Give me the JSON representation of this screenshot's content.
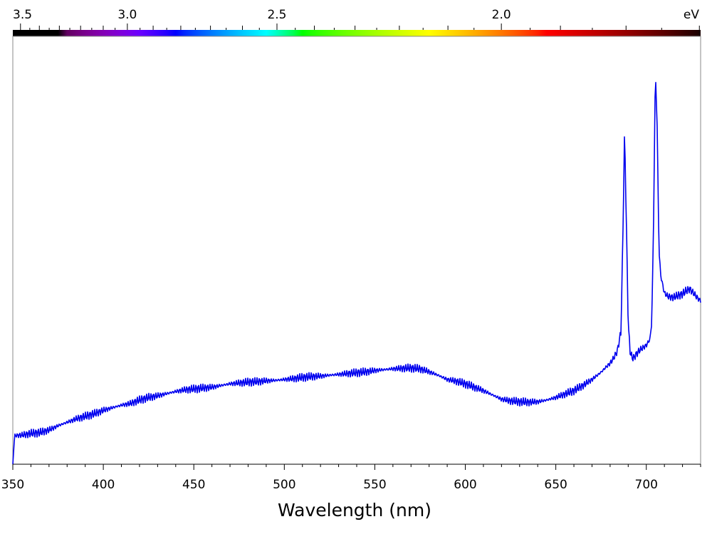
{
  "chart_data": {
    "type": "line",
    "xlabel": "Wavelength (nm)",
    "xlim": [
      350,
      730
    ],
    "ylim": [
      0,
      1
    ],
    "grid": false,
    "x_ticks": [
      350,
      400,
      450,
      500,
      550,
      600,
      650,
      700
    ],
    "top_axis": {
      "unit_label": "eV",
      "ticks": [
        {
          "label": "3.5",
          "value": 3.5
        },
        {
          "label": "3.0",
          "value": 3.0
        },
        {
          "label": "2.5",
          "value": 2.5
        },
        {
          "label": "2.0",
          "value": 2.0
        }
      ]
    },
    "colors": {
      "line": "#0000ee",
      "frame": "#888888",
      "axis": "#000000"
    },
    "series": [
      {
        "x": [
          350,
          351,
          355,
          360,
          365,
          370,
          375,
          380,
          385,
          390,
          395,
          400,
          405,
          410,
          415,
          420,
          425,
          430,
          435,
          440,
          445,
          450,
          455,
          460,
          465,
          470,
          475,
          480,
          485,
          490,
          495,
          500,
          505,
          510,
          515,
          520,
          525,
          530,
          535,
          540,
          545,
          550,
          555,
          560,
          565,
          570,
          575,
          580,
          585,
          590,
          595,
          600,
          605,
          610,
          615,
          620,
          625,
          630,
          635,
          640,
          645,
          650,
          655,
          660,
          665,
          670,
          675,
          678,
          680,
          682,
          684,
          686,
          687,
          688,
          689,
          690,
          691,
          692,
          693,
          694,
          696,
          698,
          700,
          702,
          703,
          704,
          705,
          706,
          707,
          708,
          710,
          712,
          715,
          718,
          720,
          722,
          724,
          726,
          728,
          730
        ],
        "values": [
          0.0,
          0.067,
          0.068,
          0.072,
          0.074,
          0.08,
          0.09,
          0.098,
          0.106,
          0.112,
          0.118,
          0.126,
          0.132,
          0.138,
          0.142,
          0.15,
          0.156,
          0.16,
          0.165,
          0.17,
          0.174,
          0.176,
          0.178,
          0.18,
          0.184,
          0.188,
          0.19,
          0.192,
          0.193,
          0.195,
          0.196,
          0.198,
          0.2,
          0.203,
          0.205,
          0.206,
          0.208,
          0.21,
          0.212,
          0.214,
          0.216,
          0.219,
          0.221,
          0.223,
          0.224,
          0.225,
          0.223,
          0.216,
          0.208,
          0.198,
          0.194,
          0.188,
          0.18,
          0.172,
          0.162,
          0.152,
          0.148,
          0.146,
          0.145,
          0.146,
          0.15,
          0.156,
          0.164,
          0.172,
          0.184,
          0.198,
          0.215,
          0.228,
          0.236,
          0.248,
          0.265,
          0.31,
          0.52,
          0.78,
          0.56,
          0.33,
          0.265,
          0.25,
          0.248,
          0.255,
          0.265,
          0.272,
          0.278,
          0.292,
          0.33,
          0.56,
          0.92,
          0.79,
          0.5,
          0.44,
          0.4,
          0.392,
          0.39,
          0.395,
          0.398,
          0.405,
          0.41,
          0.4,
          0.39,
          0.382
        ]
      }
    ]
  }
}
